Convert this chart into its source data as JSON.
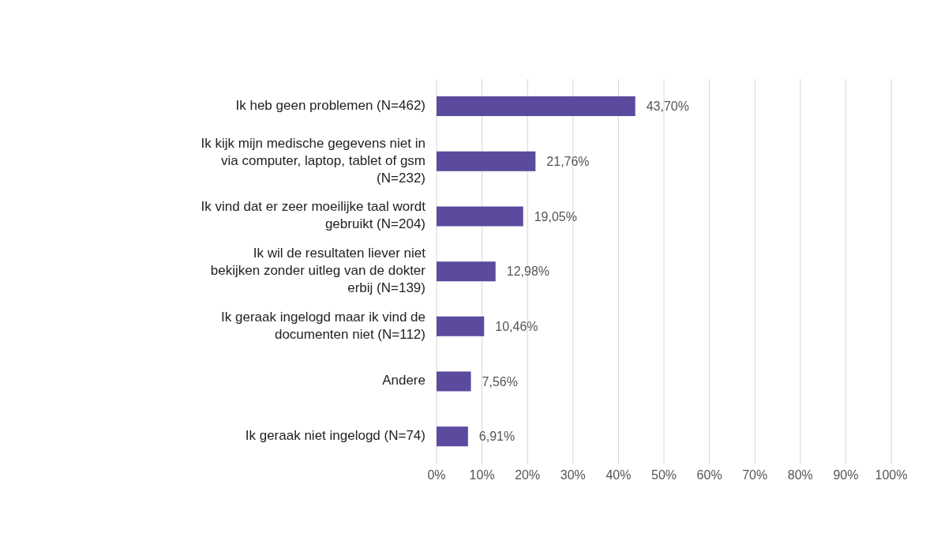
{
  "chart_data": {
    "type": "bar",
    "orientation": "horizontal",
    "categories": [
      "Ik heb geen problemen (N=462)",
      "Ik kijk mijn medische gegevens niet in via computer, laptop, tablet of gsm (N=232)",
      "Ik vind dat er zeer moeilijke taal wordt gebruikt (N=204)",
      "Ik wil de resultaten liever niet bekijken zonder uitleg van de dokter erbij (N=139)",
      "Ik geraak ingelogd maar ik vind de documenten niet (N=112)",
      "Andere",
      "Ik geraak niet ingelogd (N=74)"
    ],
    "values": [
      43.7,
      21.76,
      19.05,
      12.98,
      10.46,
      7.56,
      6.91
    ],
    "value_labels": [
      "43,70%",
      "21,76%",
      "19,05%",
      "12,98%",
      "10,46%",
      "7,56%",
      "6,91%"
    ],
    "color": "#5b4a9e",
    "xlim": [
      0,
      100
    ],
    "xticks": [
      {
        "value": 0,
        "label": "0%"
      },
      {
        "value": 10,
        "label": "10%"
      },
      {
        "value": 20,
        "label": "20%"
      },
      {
        "value": 30,
        "label": "30%"
      },
      {
        "value": 40,
        "label": "40%"
      },
      {
        "value": 50,
        "label": "50%"
      },
      {
        "value": 60,
        "label": "60%"
      },
      {
        "value": 70,
        "label": "70%"
      },
      {
        "value": 80,
        "label": "80%"
      },
      {
        "value": 90,
        "label": "90%"
      },
      {
        "value": 100,
        "label": "100%"
      }
    ],
    "grid": "x"
  }
}
